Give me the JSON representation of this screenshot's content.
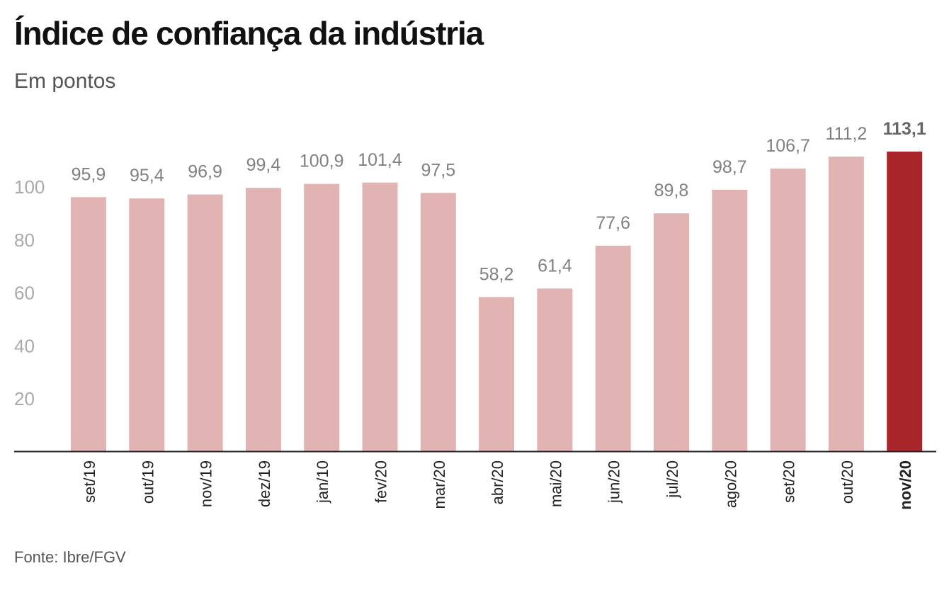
{
  "title": "Índice de confiança da indústria",
  "subtitle": "Em pontos",
  "source": "Fonte: Ibre/FGV",
  "colors": {
    "bar": "#e2b3b3",
    "highlight": "#a8252a",
    "value_label": "#808080",
    "highlight_label": "#666666",
    "tick_label": "#aaaaaa",
    "axis": "#222222"
  },
  "chart_data": {
    "type": "bar",
    "title": "Índice de confiança da indústria",
    "subtitle": "Em pontos",
    "xlabel": "",
    "ylabel": "",
    "categories": [
      "set/19",
      "out/19",
      "nov/19",
      "dez/19",
      "jan/10",
      "fev/20",
      "mar/20",
      "abr/20",
      "mai/20",
      "jun/20",
      "jul/20",
      "ago/20",
      "set/20",
      "out/20",
      "nov/20"
    ],
    "values": [
      95.9,
      95.4,
      96.9,
      99.4,
      100.9,
      101.4,
      97.5,
      58.2,
      61.4,
      77.6,
      89.8,
      98.7,
      106.7,
      111.2,
      113.1
    ],
    "value_labels": [
      "95,9",
      "95,4",
      "96,9",
      "99,4",
      "100,9",
      "101,4",
      "97,5",
      "58,2",
      "61,4",
      "77,6",
      "89,8",
      "98,7",
      "106,7",
      "111,2",
      "113,1"
    ],
    "highlight": "nov/20",
    "yticks": [
      20,
      40,
      60,
      80,
      100
    ],
    "ylim": [
      0,
      113.1
    ],
    "grid": false
  }
}
